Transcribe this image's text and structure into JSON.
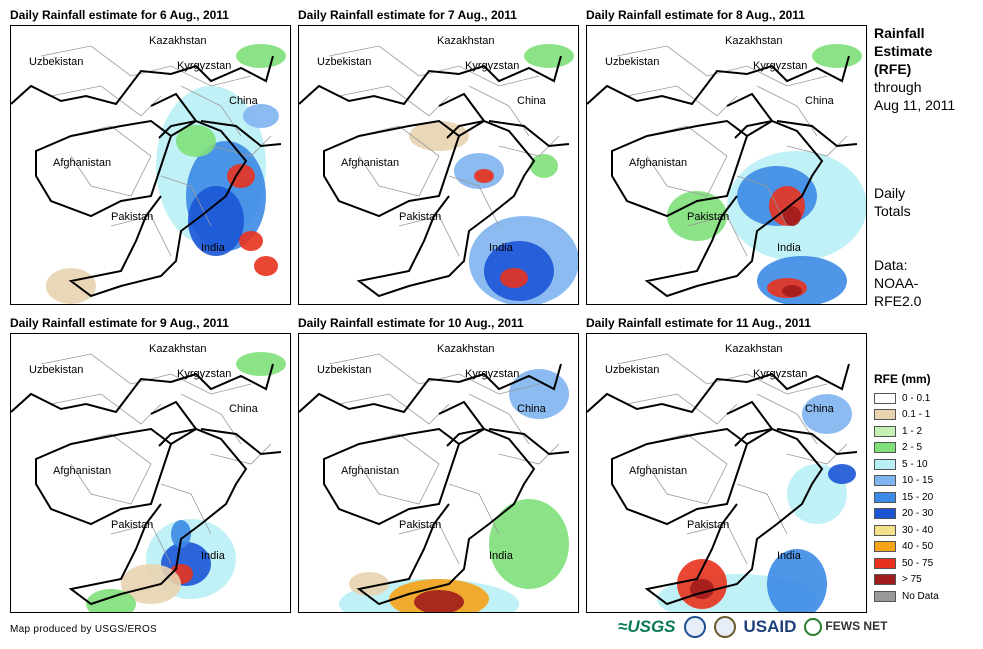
{
  "panels": [
    {
      "title": "Daily Rainfall estimate for 6 Aug., 2011"
    },
    {
      "title": "Daily Rainfall estimate for 7 Aug., 2011"
    },
    {
      "title": "Daily Rainfall estimate for 8 Aug., 2011"
    },
    {
      "title": "Daily Rainfall estimate for 9 Aug., 2011"
    },
    {
      "title": "Daily Rainfall estimate for 10 Aug., 2011"
    },
    {
      "title": "Daily Rainfall estimate for 11 Aug., 2011"
    }
  ],
  "map_labels": {
    "kazakhstan": "Kazakhstan",
    "uzbekistan": "Uzbekistan",
    "kyrgyzstan": "Kyrgyzstan",
    "china": "China",
    "afghanistan": "Afghanistan",
    "pakistan": "Pakistan",
    "india": "India"
  },
  "side": {
    "title_line1": "Rainfall",
    "title_line2": "Estimate",
    "title_line3": "(RFE)",
    "through": "through",
    "date": "Aug 11, 2011",
    "daily1": "Daily",
    "daily2": "Totals",
    "data1": "Data:",
    "data2": "NOAA-",
    "data3": "RFE2.0"
  },
  "legend": {
    "title": "RFE (mm)",
    "items": [
      {
        "label": "0 - 0.1",
        "color": "#ffffff"
      },
      {
        "label": "0.1 - 1",
        "color": "#e8d3b0"
      },
      {
        "label": "1 - 2",
        "color": "#c4f0b4"
      },
      {
        "label": "2 - 5",
        "color": "#7fe07a"
      },
      {
        "label": "5 - 10",
        "color": "#b9f0f5"
      },
      {
        "label": "10 - 15",
        "color": "#7fb4f0"
      },
      {
        "label": "15 - 20",
        "color": "#3c8ae6"
      },
      {
        "label": "20 - 30",
        "color": "#1b55d6"
      },
      {
        "label": "30 - 40",
        "color": "#f5e08a"
      },
      {
        "label": "40 - 50",
        "color": "#f5a318"
      },
      {
        "label": "50 - 75",
        "color": "#e8321e"
      },
      {
        "label": "> 75",
        "color": "#a01c1c"
      },
      {
        "label": "No Data",
        "color": "#999999"
      }
    ]
  },
  "footer": "Map produced by USGS/EROS",
  "logos": {
    "usgs": "≈USGS",
    "usaid": "USAID",
    "fews": "FEWS NET"
  }
}
